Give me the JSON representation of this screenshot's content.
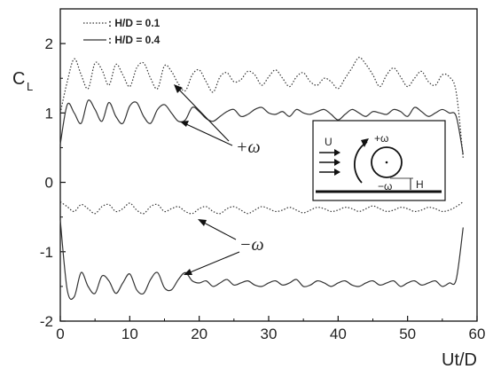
{
  "chart_data": {
    "type": "line",
    "xlabel": "Ut/D",
    "ylabel": "C",
    "ylabel_sub": "L",
    "xlim": [
      0,
      60
    ],
    "ylim": [
      -2,
      2.5
    ],
    "x_ticks": [
      0,
      10,
      20,
      30,
      40,
      50,
      60
    ],
    "y_ticks": [
      -2,
      -1,
      0,
      1,
      2
    ],
    "x_tick_labels": [
      "0",
      "10",
      "20",
      "30",
      "40",
      "50",
      "60"
    ],
    "y_tick_labels": [
      "-2",
      "-1",
      "0",
      "1",
      "2"
    ],
    "grid": false,
    "legend_position": "top-left",
    "legend": [
      {
        "label": ": H/D = 0.1",
        "style": "dotted"
      },
      {
        "label": ": H/D = 0.4",
        "style": "solid"
      }
    ],
    "series": [
      {
        "name": "H/D = 0.1",
        "style": "dotted",
        "x": [
          0,
          1,
          2,
          3,
          4,
          5,
          6,
          7,
          8,
          9,
          10,
          11,
          12,
          13,
          14,
          15,
          16,
          17,
          18,
          19,
          20,
          21,
          22,
          23,
          24,
          25,
          26,
          27,
          28,
          29,
          30,
          31,
          32,
          33,
          34,
          35,
          36,
          37,
          38,
          39,
          40,
          41,
          42,
          43,
          44,
          45,
          46,
          47,
          48,
          49,
          50,
          51,
          52,
          53,
          54,
          55,
          56,
          57,
          58
        ],
        "y": [
          1.0,
          1.45,
          1.78,
          1.55,
          1.35,
          1.72,
          1.62,
          1.4,
          1.7,
          1.55,
          1.38,
          1.65,
          1.72,
          1.5,
          1.35,
          1.68,
          1.6,
          1.42,
          1.32,
          1.55,
          1.62,
          1.45,
          1.3,
          1.52,
          1.58,
          1.45,
          1.48,
          1.6,
          1.55,
          1.4,
          1.52,
          1.62,
          1.5,
          1.38,
          1.52,
          1.58,
          1.45,
          1.4,
          1.5,
          1.45,
          1.35,
          1.5,
          1.65,
          1.8,
          1.7,
          1.55,
          1.38,
          1.55,
          1.65,
          1.52,
          1.38,
          1.5,
          1.6,
          1.45,
          1.4,
          1.55,
          1.52,
          1.3,
          0.35
        ]
      },
      {
        "name": "H/D = 0.4",
        "style": "solid",
        "x": [
          0,
          1,
          2,
          3,
          4,
          5,
          6,
          7,
          8,
          9,
          10,
          11,
          12,
          13,
          14,
          15,
          16,
          17,
          18,
          19,
          20,
          21,
          22,
          23,
          24,
          25,
          26,
          27,
          28,
          29,
          30,
          31,
          32,
          33,
          34,
          35,
          36,
          37,
          38,
          39,
          40,
          41,
          42,
          43,
          44,
          45,
          46,
          47,
          48,
          49,
          50,
          51,
          52,
          53,
          54,
          55,
          56,
          57,
          58
        ],
        "y": [
          0.55,
          1.12,
          1.0,
          0.85,
          1.18,
          1.05,
          0.88,
          1.15,
          0.95,
          0.85,
          1.1,
          1.15,
          0.95,
          0.85,
          1.05,
          1.12,
          1.0,
          0.88,
          0.9,
          1.08,
          1.02,
          0.92,
          0.88,
          0.95,
          1.02,
          1.05,
          0.95,
          0.98,
          1.05,
          1.08,
          1.0,
          0.98,
          1.02,
          0.95,
          1.05,
          1.0,
          0.98,
          1.02,
          1.05,
          0.98,
          0.9,
          0.98,
          1.05,
          1.0,
          0.95,
          1.02,
          1.0,
          0.98,
          1.05,
          1.02,
          0.95,
          1.08,
          1.02,
          0.95,
          1.0,
          1.05,
          1.0,
          0.95,
          0.4
        ]
      },
      {
        "name": "-ω, H/D = 0.1",
        "style": "dotted",
        "x": [
          0,
          1,
          2,
          3,
          4,
          5,
          6,
          7,
          8,
          9,
          10,
          11,
          12,
          13,
          14,
          15,
          16,
          17,
          18,
          19,
          20,
          21,
          22,
          23,
          24,
          25,
          26,
          27,
          28,
          29,
          30,
          31,
          32,
          33,
          34,
          35,
          36,
          37,
          38,
          39,
          40,
          41,
          42,
          43,
          44,
          45,
          46,
          47,
          48,
          49,
          50,
          51,
          52,
          53,
          54,
          55,
          56,
          57,
          58
        ],
        "y": [
          -0.28,
          -0.35,
          -0.42,
          -0.32,
          -0.38,
          -0.45,
          -0.35,
          -0.32,
          -0.42,
          -0.38,
          -0.3,
          -0.4,
          -0.45,
          -0.35,
          -0.32,
          -0.42,
          -0.38,
          -0.35,
          -0.42,
          -0.45,
          -0.38,
          -0.35,
          -0.42,
          -0.45,
          -0.38,
          -0.35,
          -0.4,
          -0.45,
          -0.4,
          -0.35,
          -0.38,
          -0.42,
          -0.4,
          -0.36,
          -0.4,
          -0.44,
          -0.4,
          -0.36,
          -0.38,
          -0.42,
          -0.4,
          -0.36,
          -0.38,
          -0.42,
          -0.38,
          -0.34,
          -0.38,
          -0.42,
          -0.4,
          -0.36,
          -0.38,
          -0.42,
          -0.4,
          -0.36,
          -0.38,
          -0.42,
          -0.4,
          -0.35,
          -0.28
        ]
      },
      {
        "name": "-ω, H/D = 0.4",
        "style": "solid",
        "x": [
          0,
          1,
          2,
          3,
          4,
          5,
          6,
          7,
          8,
          9,
          10,
          11,
          12,
          13,
          14,
          15,
          16,
          17,
          18,
          19,
          20,
          21,
          22,
          23,
          24,
          25,
          26,
          27,
          28,
          29,
          30,
          31,
          32,
          33,
          34,
          35,
          36,
          37,
          38,
          39,
          40,
          41,
          42,
          43,
          44,
          45,
          46,
          47,
          48,
          49,
          50,
          51,
          52,
          53,
          54,
          55,
          56,
          57,
          58
        ],
        "y": [
          -0.55,
          -1.55,
          -1.65,
          -1.3,
          -1.5,
          -1.6,
          -1.35,
          -1.42,
          -1.6,
          -1.45,
          -1.32,
          -1.55,
          -1.6,
          -1.4,
          -1.3,
          -1.52,
          -1.55,
          -1.4,
          -1.3,
          -1.42,
          -1.45,
          -1.42,
          -1.5,
          -1.45,
          -1.4,
          -1.48,
          -1.45,
          -1.42,
          -1.48,
          -1.5,
          -1.45,
          -1.42,
          -1.48,
          -1.45,
          -1.4,
          -1.5,
          -1.48,
          -1.42,
          -1.45,
          -1.5,
          -1.45,
          -1.42,
          -1.48,
          -1.5,
          -1.45,
          -1.42,
          -1.48,
          -1.45,
          -1.42,
          -1.5,
          -1.45,
          -1.42,
          -1.48,
          -1.45,
          -1.42,
          -1.5,
          -1.45,
          -1.4,
          -0.65
        ]
      }
    ],
    "annotations": [
      {
        "text": "+ω"
      },
      {
        "text": "−ω"
      }
    ],
    "inset": {
      "flow_label": "U",
      "rotation_top_label": "+ω",
      "rotation_bottom_label": "−ω",
      "gap_label": "H"
    }
  }
}
